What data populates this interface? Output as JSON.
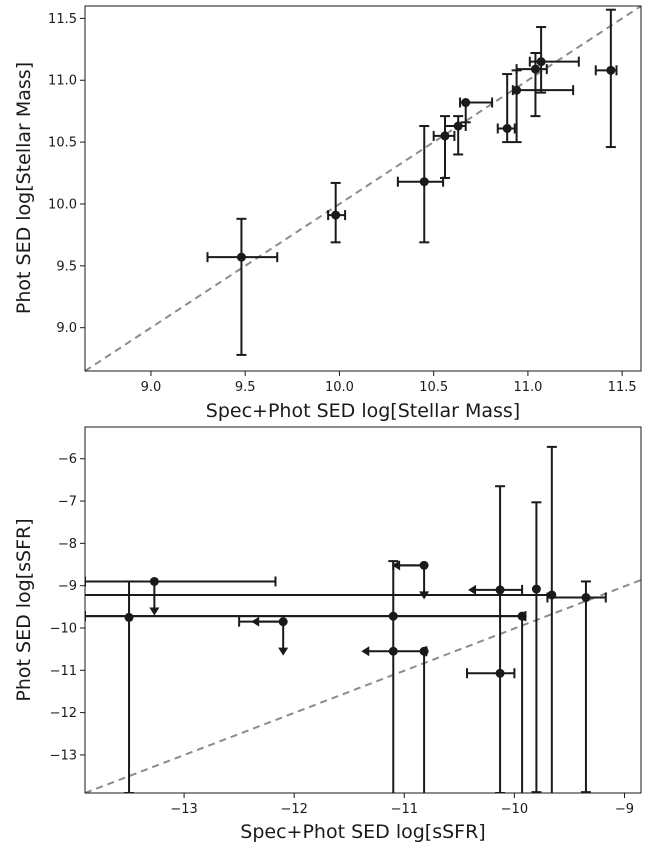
{
  "chart_data": [
    {
      "type": "scatter",
      "xlabel": "Spec+Phot SED log[Stellar Mass]",
      "ylabel": "Phot SED log[Stellar Mass]",
      "xlim": [
        8.65,
        11.6
      ],
      "ylim": [
        8.65,
        11.6
      ],
      "xticks": [
        "9.0",
        "9.5",
        "10.0",
        "10.5",
        "11.0",
        "11.5"
      ],
      "yticks": [
        "9.0",
        "9.5",
        "10.0",
        "10.5",
        "11.0",
        "11.5"
      ],
      "reference_line": "y = x (dashed gray)",
      "points": [
        {
          "x": 9.48,
          "y": 9.57,
          "xerr": [
            0.18,
            0.19
          ],
          "yerr": [
            0.79,
            0.31
          ]
        },
        {
          "x": 9.98,
          "y": 9.91,
          "xerr": [
            0.04,
            0.05
          ],
          "yerr": [
            0.22,
            0.26
          ]
        },
        {
          "x": 10.45,
          "y": 10.18,
          "xerr": [
            0.14,
            0.1
          ],
          "yerr": [
            0.49,
            0.45
          ]
        },
        {
          "x": 10.56,
          "y": 10.55,
          "xerr": [
            0.06,
            0.05
          ],
          "yerr": [
            0.34,
            0.16
          ]
        },
        {
          "x": 10.63,
          "y": 10.63,
          "xerr": [
            0.07,
            0.04
          ],
          "yerr": [
            0.23,
            0.08
          ]
        },
        {
          "x": 10.67,
          "y": 10.82,
          "xerr": [
            0.03,
            0.14
          ],
          "yerr": [
            0.16,
            0.0
          ]
        },
        {
          "x": 10.89,
          "y": 10.61,
          "xerr": [
            0.05,
            0.04
          ],
          "yerr": [
            0.11,
            0.44
          ]
        },
        {
          "x": 10.94,
          "y": 10.92,
          "xerr": [
            0.02,
            0.3
          ],
          "yerr": [
            0.42,
            0.16
          ]
        },
        {
          "x": 11.04,
          "y": 11.09,
          "xerr": [
            0.1,
            0.06
          ],
          "yerr": [
            0.38,
            0.13
          ]
        },
        {
          "x": 11.07,
          "y": 11.15,
          "xerr": [
            0.06,
            0.2
          ],
          "yerr": [
            0.25,
            0.28
          ]
        },
        {
          "x": 11.44,
          "y": 11.08,
          "xerr": [
            0.08,
            0.03
          ],
          "yerr": [
            0.62,
            0.49
          ]
        }
      ]
    },
    {
      "type": "scatter",
      "xlabel": "Spec+Phot SED log[sSFR]",
      "ylabel": "Phot SED log[sSFR]",
      "xlim": [
        -13.9,
        -8.85
      ],
      "ylim": [
        -13.9,
        -5.25
      ],
      "xticks": [
        "−13",
        "−12",
        "−11",
        "−10",
        "−9"
      ],
      "yticks": [
        "−13",
        "−12",
        "−11",
        "−10",
        "−9",
        "−8",
        "−7",
        "−6"
      ],
      "reference_line": "y = x (dashed gray)",
      "points": [
        {
          "x": -13.5,
          "y": -9.75,
          "xerr": [
            0.0,
            0.0
          ],
          "yerr": [
            4.15,
            0.85
          ],
          "arrow": "none"
        },
        {
          "x": -13.27,
          "y": -8.9,
          "xerr": [
            0.63,
            1.1
          ],
          "yerr": [
            0.0,
            0.0
          ],
          "arrow": "down"
        },
        {
          "x": -12.1,
          "y": -9.85,
          "xerr": [
            0.4,
            0.0
          ],
          "yerr": [
            0.0,
            0.0
          ],
          "arrow": "down-left"
        },
        {
          "x": -11.1,
          "y": -9.72,
          "xerr": [
            2.8,
            1.2
          ],
          "yerr": [
            4.2,
            1.3
          ],
          "arrow": "none"
        },
        {
          "x": -11.1,
          "y": -10.55,
          "xerr": [
            0.0,
            0.3
          ],
          "yerr": [
            0.0,
            0.0
          ],
          "arrow": "left"
        },
        {
          "x": -10.82,
          "y": -8.52,
          "xerr": [
            0.28,
            0.0
          ],
          "yerr": [
            0.0,
            0.0
          ],
          "arrow": "down-left"
        },
        {
          "x": -10.82,
          "y": -10.55,
          "xerr": [
            0.0,
            0.0
          ],
          "yerr": [
            3.4,
            0.0
          ],
          "arrow": "none"
        },
        {
          "x": -10.13,
          "y": -11.07,
          "xerr": [
            0.3,
            0.13
          ],
          "yerr": [
            0.0,
            0.0
          ],
          "arrow": "none"
        },
        {
          "x": -10.13,
          "y": -9.1,
          "xerr": [
            0.0,
            0.2
          ],
          "yerr": [
            4.8,
            2.45
          ],
          "arrow": "left"
        },
        {
          "x": -9.93,
          "y": -9.72,
          "xerr": [
            3.97,
            0.0
          ],
          "yerr": [
            4.2,
            0.0
          ],
          "arrow": "none"
        },
        {
          "x": -9.8,
          "y": -9.08,
          "xerr": [
            0.0,
            0.0
          ],
          "yerr": [
            4.8,
            2.05
          ],
          "arrow": "none"
        },
        {
          "x": -9.66,
          "y": -9.22,
          "xerr": [
            4.25,
            0.0
          ],
          "yerr": [
            4.7,
            3.5
          ],
          "arrow": "none"
        },
        {
          "x": -9.35,
          "y": -9.28,
          "xerr": [
            0.35,
            0.18
          ],
          "yerr": [
            4.6,
            0.38
          ],
          "arrow": "none"
        }
      ]
    }
  ]
}
